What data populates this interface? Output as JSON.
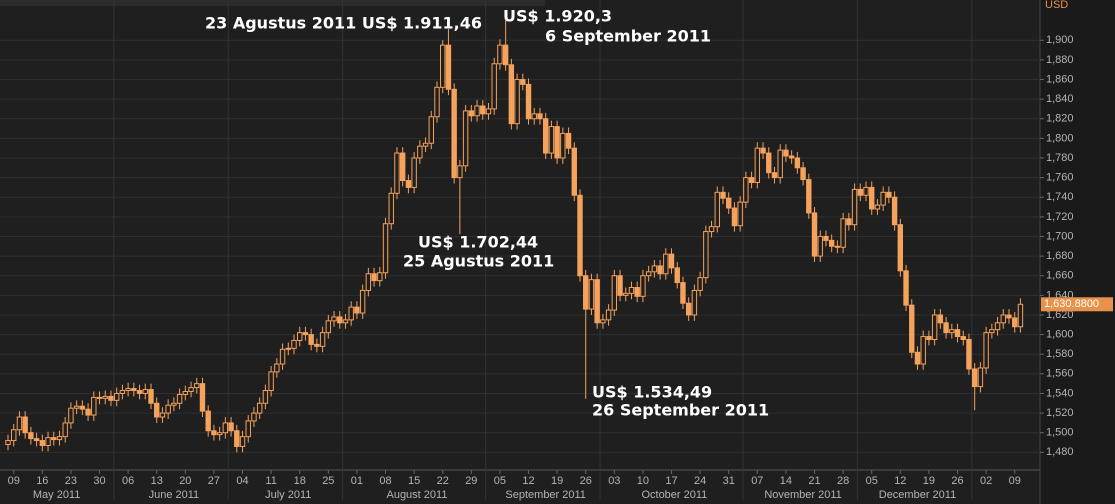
{
  "chart_data": {
    "type": "candlestick",
    "y_axis_label": "USD",
    "ylim": [
      1462,
      1941
    ],
    "yticks": [
      {
        "value": 1480,
        "label": "1,480"
      },
      {
        "value": 1500,
        "label": "1,500"
      },
      {
        "value": 1520,
        "label": "1,520"
      },
      {
        "value": 1540,
        "label": "1,540"
      },
      {
        "value": 1560,
        "label": "1,560"
      },
      {
        "value": 1580,
        "label": "1,580"
      },
      {
        "value": 1600,
        "label": "1,600"
      },
      {
        "value": 1620,
        "label": "1,620"
      },
      {
        "value": 1640,
        "label": "1,640"
      },
      {
        "value": 1660,
        "label": "1,660"
      },
      {
        "value": 1680,
        "label": "1,680"
      },
      {
        "value": 1700,
        "label": "1,700"
      },
      {
        "value": 1720,
        "label": "1,720"
      },
      {
        "value": 1740,
        "label": "1,740"
      },
      {
        "value": 1760,
        "label": "1,760"
      },
      {
        "value": 1780,
        "label": "1,780"
      },
      {
        "value": 1800,
        "label": "1,800"
      },
      {
        "value": 1820,
        "label": "1,820"
      },
      {
        "value": 1840,
        "label": "1,840"
      },
      {
        "value": 1860,
        "label": "1,860"
      },
      {
        "value": 1880,
        "label": "1,880"
      },
      {
        "value": 1900,
        "label": "1,900"
      }
    ],
    "grid": true,
    "color": "#f5a25c",
    "categories": [
      null,
      "09",
      null,
      null,
      null,
      null,
      "16",
      null,
      null,
      null,
      null,
      "23",
      null,
      null,
      null,
      null,
      "30",
      null,
      null,
      null,
      null,
      "06",
      null,
      null,
      null,
      null,
      "13",
      null,
      null,
      null,
      null,
      "20",
      null,
      null,
      null,
      null,
      "27",
      null,
      null,
      null,
      null,
      "04",
      null,
      null,
      null,
      null,
      "11",
      null,
      null,
      null,
      null,
      "18",
      null,
      null,
      null,
      null,
      "25",
      null,
      null,
      null,
      null,
      "01",
      null,
      null,
      null,
      null,
      "08",
      null,
      null,
      null,
      null,
      "15",
      null,
      null,
      null,
      null,
      "22",
      null,
      null,
      null,
      null,
      "29",
      null,
      null,
      null,
      null,
      "05",
      null,
      null,
      null,
      null,
      "12",
      null,
      null,
      null,
      null,
      "19",
      null,
      null,
      null,
      null,
      "26",
      null,
      null,
      null,
      null,
      "03",
      null,
      null,
      null,
      null,
      "10",
      null,
      null,
      null,
      null,
      "17",
      null,
      null,
      null,
      null,
      "24",
      null,
      null,
      null,
      null,
      "31",
      null,
      null,
      null,
      null,
      "07",
      null,
      null,
      null,
      null,
      "14",
      null,
      null,
      null,
      null,
      "21",
      null,
      null,
      null,
      null,
      "28",
      null,
      null,
      null,
      null,
      "05",
      null,
      null,
      null,
      null,
      "12",
      null,
      null,
      null,
      null,
      "19",
      null,
      null,
      null,
      null,
      "26",
      null,
      null,
      null,
      null,
      "02",
      null,
      null,
      null,
      null,
      "09",
      null
    ],
    "months": [
      "May 2011",
      "June 2011",
      "July 2011",
      "August 2011",
      "September 2011",
      "October 2011",
      "November 2011",
      "December 2011"
    ],
    "open": [
      1488,
      1492,
      1503,
      1516,
      1500,
      1494,
      1492,
      1487,
      1495,
      1493,
      1496,
      1510,
      1525,
      1527,
      1524,
      1518,
      1536,
      1535,
      1537,
      1533,
      1540,
      1543,
      1545,
      1543,
      1540,
      1544,
      1530,
      1516,
      1520,
      1528,
      1530,
      1539,
      1542,
      1546,
      1550,
      1522,
      1502,
      1498,
      1500,
      1510,
      1502,
      1486,
      1496,
      1512,
      1520,
      1530,
      1543,
      1562,
      1570,
      1585,
      1586,
      1594,
      1602,
      1600,
      1590,
      1588,
      1602,
      1614,
      1618,
      1612,
      1615,
      1628,
      1622,
      1645,
      1662,
      1655,
      1663,
      1713,
      1744,
      1785,
      1757,
      1750,
      1780,
      1792,
      1795,
      1822,
      1852,
      1895,
      1850,
      1760,
      1772,
      1828,
      1823,
      1833,
      1825,
      1830,
      1876,
      1895,
      1875,
      1815,
      1860,
      1855,
      1820,
      1825,
      1820,
      1785,
      1812,
      1780,
      1805,
      1790,
      1742,
      1660,
      1626,
      1656,
      1612,
      1615,
      1625,
      1660,
      1640,
      1642,
      1648,
      1639,
      1660,
      1664,
      1670,
      1662,
      1682,
      1668,
      1653,
      1632,
      1620,
      1645,
      1658,
      1705,
      1710,
      1745,
      1739,
      1729,
      1711,
      1735,
      1760,
      1755,
      1790,
      1785,
      1765,
      1760,
      1788,
      1782,
      1780,
      1770,
      1758,
      1724,
      1680,
      1700,
      1696,
      1690,
      1689,
      1718,
      1712,
      1748,
      1742,
      1750,
      1728,
      1732,
      1745,
      1740,
      1712,
      1665,
      1630,
      1582,
      1570,
      1598,
      1595,
      1620,
      1612,
      1602,
      1605,
      1598,
      1595,
      1565,
      1547,
      1566,
      1602,
      1605,
      1612,
      1620,
      1617,
      1608
    ],
    "high": [
      1498,
      1509,
      1522,
      1522,
      1506,
      1500,
      1498,
      1501,
      1501,
      1502,
      1516,
      1531,
      1533,
      1533,
      1530,
      1542,
      1542,
      1543,
      1543,
      1546,
      1549,
      1551,
      1551,
      1549,
      1550,
      1550,
      1536,
      1526,
      1534,
      1536,
      1545,
      1548,
      1552,
      1556,
      1556,
      1528,
      1508,
      1506,
      1516,
      1516,
      1508,
      1502,
      1518,
      1526,
      1536,
      1549,
      1568,
      1576,
      1591,
      1592,
      1600,
      1608,
      1608,
      1606,
      1596,
      1608,
      1620,
      1624,
      1624,
      1621,
      1634,
      1634,
      1651,
      1668,
      1668,
      1669,
      1719,
      1750,
      1791,
      1791,
      1763,
      1786,
      1798,
      1801,
      1828,
      1858,
      1900,
      1911.46,
      1856,
      1778,
      1834,
      1834,
      1839,
      1839,
      1836,
      1882,
      1901,
      1920.3,
      1881,
      1866,
      1866,
      1861,
      1831,
      1831,
      1826,
      1818,
      1818,
      1811,
      1811,
      1796,
      1748,
      1666,
      1662,
      1662,
      1621,
      1631,
      1666,
      1666,
      1648,
      1654,
      1654,
      1666,
      1670,
      1676,
      1676,
      1688,
      1688,
      1674,
      1659,
      1638,
      1651,
      1664,
      1711,
      1716,
      1751,
      1751,
      1745,
      1735,
      1741,
      1766,
      1766,
      1796,
      1796,
      1791,
      1771,
      1794,
      1794,
      1788,
      1786,
      1776,
      1764,
      1730,
      1706,
      1706,
      1702,
      1696,
      1724,
      1724,
      1754,
      1754,
      1756,
      1756,
      1738,
      1751,
      1751,
      1746,
      1718,
      1671,
      1636,
      1588,
      1604,
      1604,
      1626,
      1626,
      1618,
      1611,
      1611,
      1604,
      1601,
      1571,
      1572,
      1608,
      1611,
      1618,
      1626,
      1626,
      1623,
      1637
    ],
    "low": [
      1482,
      1486,
      1497,
      1494,
      1488,
      1486,
      1481,
      1481,
      1487,
      1487,
      1490,
      1504,
      1519,
      1518,
      1512,
      1512,
      1529,
      1529,
      1527,
      1527,
      1534,
      1537,
      1537,
      1534,
      1534,
      1524,
      1510,
      1510,
      1514,
      1522,
      1524,
      1533,
      1536,
      1540,
      1516,
      1496,
      1492,
      1492,
      1494,
      1496,
      1480,
      1480,
      1490,
      1506,
      1514,
      1524,
      1537,
      1556,
      1564,
      1579,
      1580,
      1588,
      1594,
      1584,
      1582,
      1582,
      1596,
      1608,
      1606,
      1606,
      1609,
      1616,
      1616,
      1639,
      1649,
      1649,
      1657,
      1707,
      1738,
      1751,
      1744,
      1744,
      1774,
      1786,
      1789,
      1816,
      1846,
      1844,
      1754,
      1702.44,
      1766,
      1817,
      1817,
      1819,
      1819,
      1824,
      1870,
      1869,
      1809,
      1809,
      1849,
      1814,
      1814,
      1814,
      1779,
      1779,
      1774,
      1774,
      1784,
      1736,
      1654,
      1534.49,
      1620,
      1606,
      1606,
      1609,
      1619,
      1634,
      1634,
      1636,
      1633,
      1633,
      1654,
      1658,
      1656,
      1656,
      1662,
      1647,
      1626,
      1614,
      1614,
      1639,
      1652,
      1699,
      1704,
      1733,
      1723,
      1705,
      1705,
      1729,
      1749,
      1749,
      1779,
      1759,
      1754,
      1754,
      1776,
      1774,
      1764,
      1752,
      1718,
      1674,
      1674,
      1690,
      1684,
      1683,
      1683,
      1706,
      1706,
      1736,
      1736,
      1722,
      1722,
      1726,
      1734,
      1706,
      1659,
      1624,
      1576,
      1564,
      1564,
      1589,
      1589,
      1606,
      1596,
      1596,
      1592,
      1589,
      1559,
      1523,
      1541,
      1560,
      1596,
      1599,
      1606,
      1611,
      1602,
      1602
    ],
    "close": [
      1492,
      1503,
      1516,
      1500,
      1494,
      1492,
      1487,
      1495,
      1493,
      1496,
      1510,
      1525,
      1527,
      1524,
      1518,
      1536,
      1535,
      1537,
      1533,
      1540,
      1543,
      1545,
      1543,
      1540,
      1544,
      1530,
      1516,
      1520,
      1528,
      1530,
      1539,
      1542,
      1546,
      1550,
      1522,
      1502,
      1498,
      1500,
      1510,
      1502,
      1486,
      1496,
      1512,
      1520,
      1530,
      1543,
      1562,
      1570,
      1585,
      1586,
      1594,
      1602,
      1600,
      1590,
      1588,
      1602,
      1614,
      1618,
      1612,
      1615,
      1628,
      1622,
      1645,
      1662,
      1655,
      1663,
      1713,
      1744,
      1785,
      1757,
      1750,
      1780,
      1792,
      1795,
      1822,
      1852,
      1895,
      1850,
      1760,
      1772,
      1828,
      1823,
      1833,
      1825,
      1830,
      1876,
      1895,
      1875,
      1815,
      1860,
      1855,
      1820,
      1825,
      1820,
      1785,
      1812,
      1780,
      1805,
      1790,
      1742,
      1660,
      1626,
      1656,
      1612,
      1615,
      1625,
      1660,
      1640,
      1642,
      1648,
      1639,
      1660,
      1664,
      1670,
      1662,
      1682,
      1668,
      1653,
      1632,
      1620,
      1645,
      1658,
      1705,
      1710,
      1745,
      1739,
      1729,
      1711,
      1735,
      1760,
      1755,
      1790,
      1785,
      1765,
      1760,
      1788,
      1782,
      1780,
      1770,
      1758,
      1724,
      1680,
      1700,
      1696,
      1690,
      1689,
      1718,
      1712,
      1748,
      1742,
      1750,
      1728,
      1732,
      1745,
      1740,
      1712,
      1665,
      1630,
      1582,
      1570,
      1598,
      1595,
      1620,
      1612,
      1602,
      1605,
      1598,
      1595,
      1565,
      1547,
      1566,
      1602,
      1605,
      1612,
      1620,
      1617,
      1608,
      1630.88
    ],
    "last_label": "1,630.8800",
    "annotations": [
      "23 Agustus 2011  US$ 1.911,46",
      "US$ 1.920,3",
      "6 September 2011",
      "US$ 1.702,44",
      "25 Agustus 2011",
      "US$ 1.534,49",
      "26 September 2011"
    ]
  }
}
